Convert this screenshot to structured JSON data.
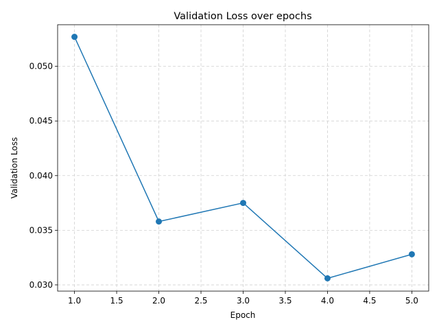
{
  "chart_data": {
    "type": "line",
    "title": "Validation Loss over epochs",
    "xlabel": "Epoch",
    "ylabel": "Validation Loss",
    "x": [
      1,
      2,
      3,
      4,
      5
    ],
    "series": [
      {
        "values": [
          0.0527,
          0.0358,
          0.0375,
          0.0306,
          0.0328
        ],
        "color": "#1f77b4",
        "marker": "circle"
      }
    ],
    "xlim": [
      0.8,
      5.2
    ],
    "ylim": [
      0.02943,
      0.05381
    ],
    "xticks": [
      "1.0",
      "1.5",
      "2.0",
      "2.5",
      "3.0",
      "3.5",
      "4.0",
      "4.5",
      "5.0"
    ],
    "yticks": [
      "0.030",
      "0.035",
      "0.040",
      "0.045",
      "0.050"
    ],
    "grid": true,
    "grid_style": "dashed",
    "legend": "none"
  }
}
